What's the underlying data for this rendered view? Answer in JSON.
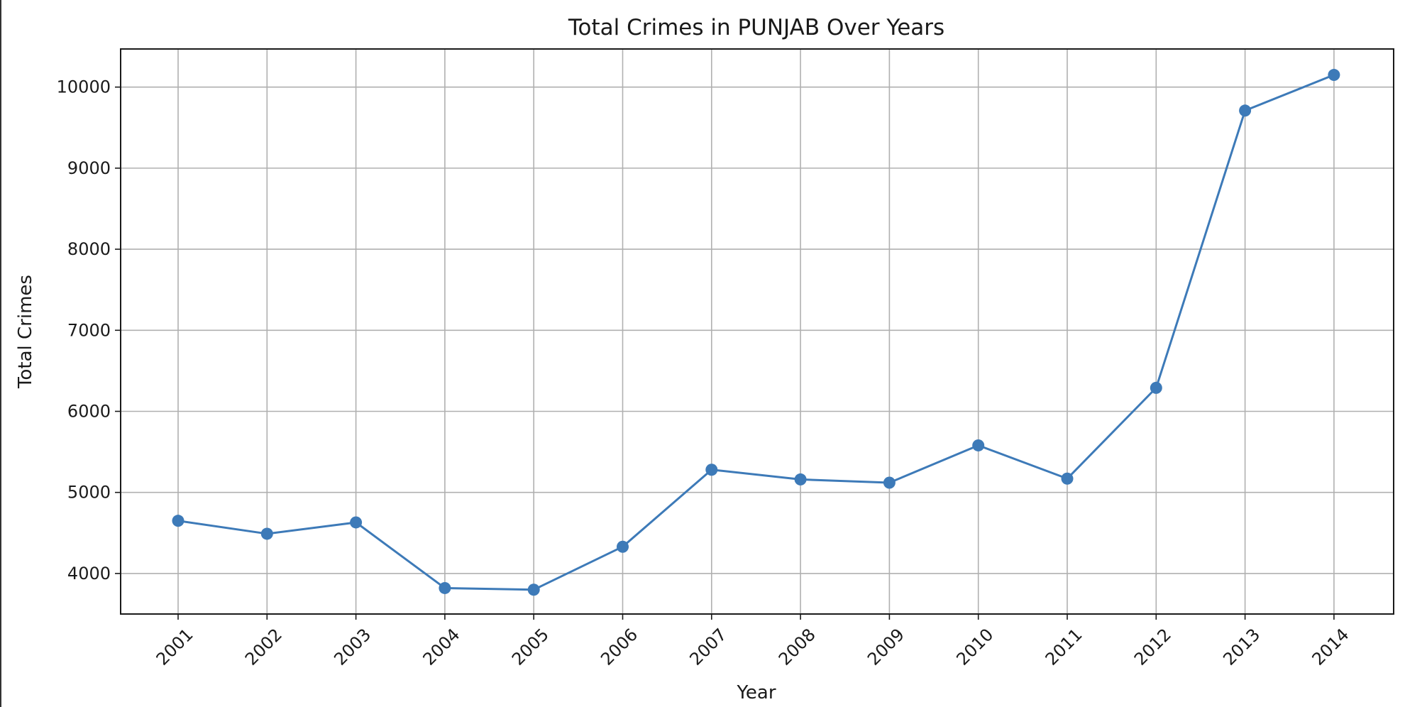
{
  "chart_data": {
    "type": "line",
    "title": "Total Crimes in PUNJAB Over Years",
    "xlabel": "Year",
    "ylabel": "Total Crimes",
    "x": [
      "2001",
      "2002",
      "2003",
      "2004",
      "2005",
      "2006",
      "2007",
      "2008",
      "2009",
      "2010",
      "2011",
      "2012",
      "2013",
      "2014"
    ],
    "series": [
      {
        "values": [
          4650,
          4490,
          4630,
          3820,
          3800,
          4330,
          5280,
          5160,
          5120,
          5580,
          5170,
          6290,
          9710,
          10150
        ],
        "color": "#3d7ab8",
        "marker": "circle"
      }
    ],
    "ylim": [
      3500,
      10470
    ],
    "yticks": [
      4000,
      5000,
      6000,
      7000,
      8000,
      9000,
      10000
    ],
    "ytick_labels": [
      "4000",
      "5000",
      "6000",
      "7000",
      "8000",
      "9000",
      "10000"
    ],
    "grid": true,
    "xtick_rotation": -45
  }
}
